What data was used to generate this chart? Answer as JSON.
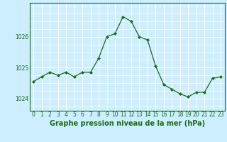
{
  "x": [
    0,
    1,
    2,
    3,
    4,
    5,
    6,
    7,
    8,
    9,
    10,
    11,
    12,
    13,
    14,
    15,
    16,
    17,
    18,
    19,
    20,
    21,
    22,
    23
  ],
  "y": [
    1024.55,
    1024.7,
    1024.85,
    1024.75,
    1024.85,
    1024.7,
    1024.85,
    1024.85,
    1025.3,
    1026.0,
    1026.1,
    1026.65,
    1026.5,
    1026.0,
    1025.9,
    1025.05,
    1024.45,
    1024.3,
    1024.15,
    1024.05,
    1024.2,
    1024.2,
    1024.65,
    1024.7
  ],
  "line_color": "#1a6b1a",
  "marker": "D",
  "marker_size": 2.0,
  "bg_color": "#cceeff",
  "grid_color": "#ffffff",
  "xlabel": "Graphe pression niveau de la mer (hPa)",
  "xlabel_fontsize": 7,
  "tick_fontsize": 5.5,
  "ylim": [
    1023.6,
    1027.1
  ],
  "xlim": [
    -0.5,
    23.5
  ],
  "yticks": [
    1024,
    1025,
    1026
  ],
  "xticks": [
    0,
    1,
    2,
    3,
    4,
    5,
    6,
    7,
    8,
    9,
    10,
    11,
    12,
    13,
    14,
    15,
    16,
    17,
    18,
    19,
    20,
    21,
    22,
    23
  ]
}
